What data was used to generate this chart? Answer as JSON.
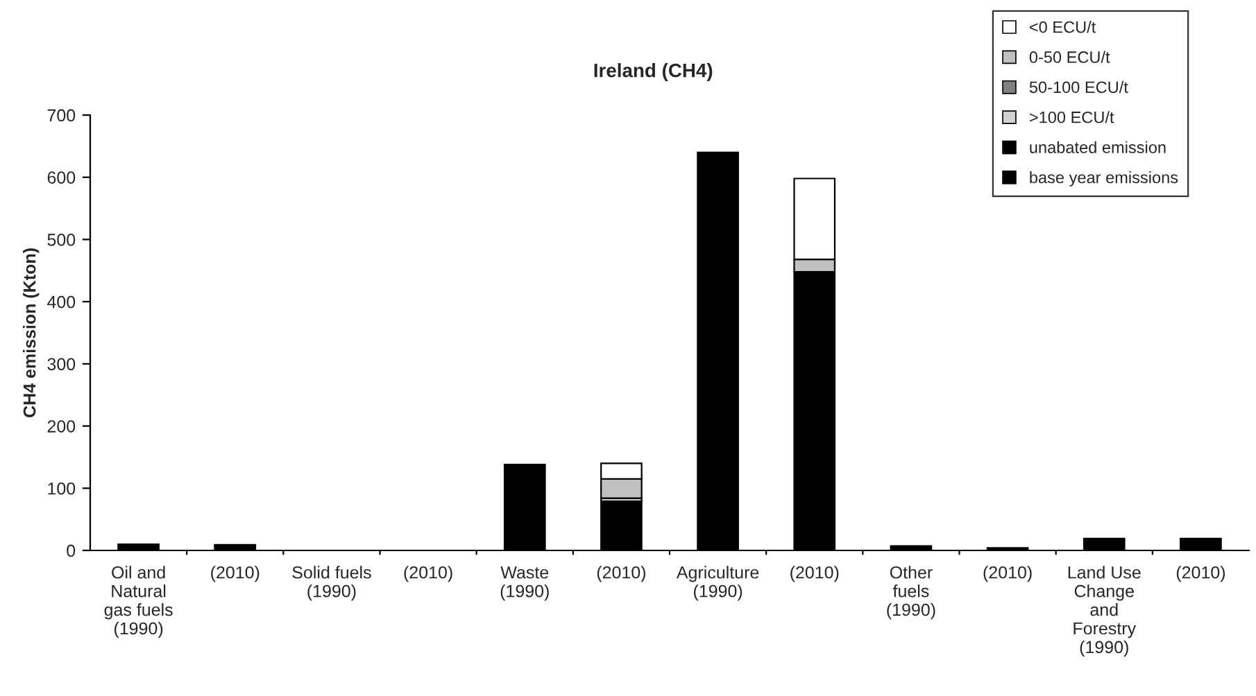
{
  "chart_data": {
    "type": "bar",
    "title": "Ireland (CH4)",
    "ylabel": "CH4 emission (Kton)",
    "stacked": true,
    "categories": [
      "Oil and\nNatural\ngas fuels\n(1990)",
      "(2010)",
      "Solid fuels\n(1990)",
      "(2010)",
      "Waste\n(1990)",
      "(2010)",
      "Agriculture\n(1990)",
      "(2010)",
      "Other\nfuels\n(1990)",
      "(2010)",
      "Land Use\nChange\nand\nForestry\n(1990)",
      "(2010)"
    ],
    "series": [
      {
        "name": "base year emissions",
        "color": "#000000",
        "values": [
          10,
          null,
          0,
          null,
          138,
          null,
          640,
          null,
          7,
          null,
          19,
          null
        ]
      },
      {
        "name": "unabated emission",
        "color": "#000000",
        "values": [
          null,
          7,
          null,
          0,
          null,
          79,
          null,
          448,
          null,
          4,
          null,
          19
        ]
      },
      {
        "name": ">100 ECU/t",
        "color": "#d0d0d0",
        "values": [
          null,
          2,
          null,
          null,
          null,
          5,
          null,
          null,
          null,
          null,
          null,
          null
        ]
      },
      {
        "name": "50-100 ECU/t",
        "color": "#808080",
        "values": [
          null,
          null,
          null,
          null,
          null,
          null,
          null,
          null,
          null,
          null,
          null,
          null
        ]
      },
      {
        "name": "0-50 ECU/t",
        "color": "#c0c0c0",
        "values": [
          null,
          null,
          null,
          null,
          null,
          31,
          null,
          20,
          null,
          null,
          null,
          null
        ]
      },
      {
        "name": "<0 ECU/t",
        "color": "#ffffff",
        "values": [
          null,
          null,
          null,
          null,
          null,
          25,
          null,
          130,
          null,
          null,
          null,
          null
        ]
      }
    ],
    "ylim": [
      0,
      700
    ],
    "yticks": [
      0,
      100,
      200,
      300,
      400,
      500,
      600,
      700
    ],
    "grid": false,
    "legend": "top right"
  }
}
